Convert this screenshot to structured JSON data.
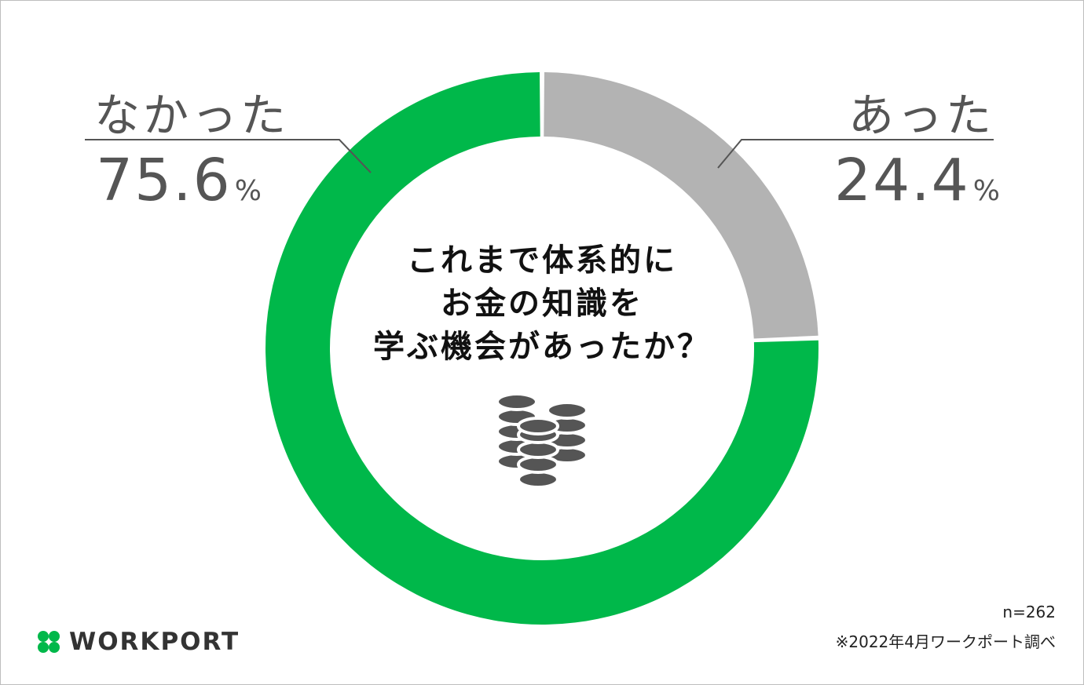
{
  "chart_data": {
    "type": "pie",
    "categories": [
      "あった",
      "なかった"
    ],
    "values": [
      24.4,
      75.6
    ],
    "unit": "%",
    "colors": [
      "#b3b3b3",
      "#00b84a"
    ],
    "center_text": [
      "これまで体系的に",
      "お金の知識を",
      "学ぶ機会があったか？"
    ],
    "center_icon": "coin-stack-icon",
    "sample_note": "n=262",
    "source_note": "※2022年4月ワークポート調べ"
  },
  "branding": {
    "logo_text": "WORKPORT",
    "logo_icon": "clover-icon",
    "logo_color": "#00b84a"
  }
}
